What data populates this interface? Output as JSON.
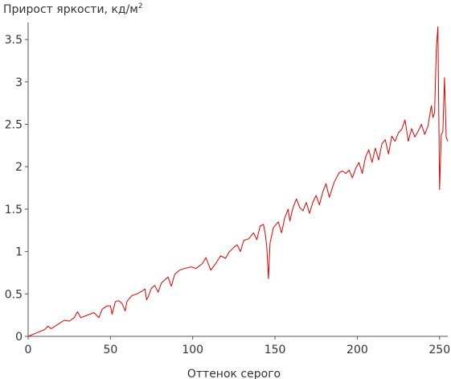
{
  "chart_data": {
    "type": "line",
    "title": "Прирост яркости, кд/м",
    "title_superscript": "2",
    "xlabel": "Оттенок серого",
    "ylabel": "",
    "xlim": [
      0,
      255
    ],
    "ylim": [
      0,
      3.7
    ],
    "x_ticks": [
      0,
      50,
      100,
      150,
      200,
      250
    ],
    "y_ticks": [
      0,
      0.5,
      1,
      1.5,
      2,
      2.5,
      3,
      3.5
    ],
    "y_tick_labels": [
      "0",
      "0.5",
      "1",
      "1.5",
      "2",
      "2.5",
      "3",
      "3.5"
    ],
    "grid": false,
    "line_color": "#e00000",
    "series": [
      {
        "name": "",
        "points": [
          [
            0,
            0.0
          ],
          [
            5,
            0.04
          ],
          [
            10,
            0.08
          ],
          [
            12,
            0.12
          ],
          [
            14,
            0.09
          ],
          [
            18,
            0.14
          ],
          [
            22,
            0.19
          ],
          [
            25,
            0.18
          ],
          [
            28,
            0.22
          ],
          [
            30,
            0.29
          ],
          [
            32,
            0.22
          ],
          [
            36,
            0.25
          ],
          [
            40,
            0.28
          ],
          [
            43,
            0.22
          ],
          [
            45,
            0.32
          ],
          [
            48,
            0.36
          ],
          [
            50,
            0.36
          ],
          [
            51,
            0.26
          ],
          [
            53,
            0.41
          ],
          [
            55,
            0.42
          ],
          [
            57,
            0.39
          ],
          [
            59,
            0.3
          ],
          [
            60,
            0.41
          ],
          [
            63,
            0.48
          ],
          [
            66,
            0.5
          ],
          [
            69,
            0.53
          ],
          [
            71,
            0.56
          ],
          [
            72,
            0.43
          ],
          [
            73,
            0.47
          ],
          [
            75,
            0.57
          ],
          [
            77,
            0.6
          ],
          [
            79,
            0.52
          ],
          [
            81,
            0.63
          ],
          [
            85,
            0.7
          ],
          [
            87,
            0.59
          ],
          [
            89,
            0.73
          ],
          [
            92,
            0.78
          ],
          [
            95,
            0.8
          ],
          [
            99,
            0.82
          ],
          [
            102,
            0.8
          ],
          [
            106,
            0.86
          ],
          [
            108,
            0.93
          ],
          [
            111,
            0.78
          ],
          [
            114,
            0.86
          ],
          [
            117,
            0.95
          ],
          [
            120,
            0.92
          ],
          [
            122,
            0.99
          ],
          [
            125,
            1.05
          ],
          [
            127,
            1.08
          ],
          [
            129,
            1.0
          ],
          [
            131,
            1.13
          ],
          [
            134,
            1.15
          ],
          [
            137,
            1.22
          ],
          [
            139,
            1.14
          ],
          [
            141,
            1.3
          ],
          [
            143,
            1.32
          ],
          [
            144,
            1.22
          ],
          [
            145,
            1.06
          ],
          [
            146,
            0.68
          ],
          [
            147,
            1.1
          ],
          [
            149,
            1.28
          ],
          [
            152,
            1.35
          ],
          [
            154,
            1.22
          ],
          [
            156,
            1.4
          ],
          [
            158,
            1.5
          ],
          [
            159,
            1.36
          ],
          [
            161,
            1.52
          ],
          [
            163,
            1.62
          ],
          [
            165,
            1.52
          ],
          [
            167,
            1.48
          ],
          [
            169,
            1.58
          ],
          [
            171,
            1.45
          ],
          [
            173,
            1.58
          ],
          [
            175,
            1.66
          ],
          [
            177,
            1.55
          ],
          [
            179,
            1.7
          ],
          [
            181,
            1.8
          ],
          [
            183,
            1.64
          ],
          [
            186,
            1.82
          ],
          [
            189,
            1.93
          ],
          [
            191,
            1.95
          ],
          [
            193,
            1.92
          ],
          [
            195,
            1.96
          ],
          [
            197,
            1.87
          ],
          [
            199,
            1.98
          ],
          [
            201,
            2.05
          ],
          [
            203,
            1.92
          ],
          [
            205,
            2.11
          ],
          [
            207,
            2.2
          ],
          [
            209,
            2.05
          ],
          [
            211,
            2.22
          ],
          [
            213,
            2.08
          ],
          [
            215,
            2.27
          ],
          [
            217,
            2.32
          ],
          [
            219,
            2.15
          ],
          [
            221,
            2.36
          ],
          [
            223,
            2.3
          ],
          [
            225,
            2.4
          ],
          [
            227,
            2.44
          ],
          [
            229,
            2.55
          ],
          [
            231,
            2.3
          ],
          [
            233,
            2.45
          ],
          [
            235,
            2.35
          ],
          [
            237,
            2.42
          ],
          [
            239,
            2.5
          ],
          [
            241,
            2.38
          ],
          [
            243,
            2.48
          ],
          [
            245,
            2.72
          ],
          [
            246,
            2.58
          ],
          [
            247,
            2.64
          ],
          [
            248,
            3.38
          ],
          [
            249,
            3.65
          ],
          [
            250,
            1.73
          ],
          [
            251,
            2.37
          ],
          [
            252,
            2.42
          ],
          [
            253,
            3.05
          ],
          [
            254,
            2.35
          ],
          [
            255,
            2.3
          ]
        ]
      }
    ]
  }
}
